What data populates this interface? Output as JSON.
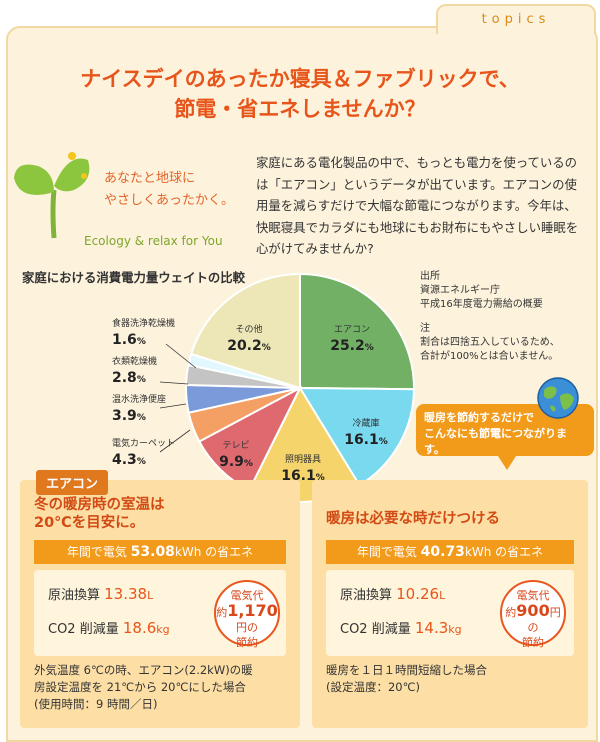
{
  "tab_label": "topics",
  "headline": {
    "line1": "ナイスデイのあったか寝具＆ファブリックで、",
    "line2": "節電・省エネしませんか？"
  },
  "tagline": {
    "line1": "あなたと地球に",
    "line2": "やさしくあったかく。"
  },
  "eco_line": "Ecology & relax for You",
  "intro_text": "家庭にある電化製品の中で、もっとも電力を使っているのは「エアコン」というデータが出ています。エアコンの使用量を減らすだけで大幅な節電につながります。今年は、快眠寝具でカラダにも地球にもお財布にもやさしい睡眠を心がけてみませんか?",
  "chart_data": {
    "type": "pie",
    "title": "家庭における消費電力量ウェイトの比較",
    "unit": "%",
    "slices": [
      {
        "label": "エアコン",
        "value": 25.2,
        "display": "25.2",
        "color": "#72b065"
      },
      {
        "label": "冷蔵庫",
        "value": 16.1,
        "display": "16.1",
        "color": "#79d9ef"
      },
      {
        "label": "照明器具",
        "value": 16.1,
        "display": "16.1",
        "color": "#f5d56b"
      },
      {
        "label": "テレビ",
        "value": 9.9,
        "display": "9.9",
        "color": "#de6a70"
      },
      {
        "label": "電気カーペット",
        "value": 4.3,
        "display": "4.3",
        "color": "#f4a065"
      },
      {
        "label": "温水洗浄便座",
        "value": 3.9,
        "display": "3.9",
        "color": "#7a9ad9"
      },
      {
        "label": "衣類乾燥機",
        "value": 2.8,
        "display": "2.8",
        "color": "#c4c4c4"
      },
      {
        "label": "食器洗浄乾燥機",
        "value": 1.6,
        "display": "1.6",
        "color": "#e2f8ff"
      },
      {
        "label": "その他",
        "value": 20.2,
        "display": "20.2",
        "color": "#ede7b8"
      }
    ]
  },
  "source": {
    "line1": "出所",
    "line2": "資源エネルギー庁",
    "line3": "平成16年度電力需給の概要"
  },
  "note": {
    "line1": "注",
    "line2": "割合は四捨五入しているため、",
    "line3": "合計が100%とは合いません。"
  },
  "bubble": {
    "line1": "暖房を節約するだけで",
    "line2": "こんなにも節電につながります。"
  },
  "category_tag": "エアコン",
  "panel1": {
    "heading1": "冬の暖房時の室温は",
    "heading2": "20℃を目安に。",
    "save_pre": "年間で電気 ",
    "save_val": "53.08",
    "save_post": "kWh の省エネ",
    "oil_label": "原油換算 ",
    "oil_val": "13.38",
    "oil_unit": "L",
    "co2_label": "CO2 削減量 ",
    "co2_val": "18.6",
    "co2_unit": "kg",
    "cost_l1": "電気代",
    "cost_pre": "約",
    "cost_val": "1,170",
    "cost_post": "円の",
    "cost_l3": "節約",
    "foot1": "外気温度 6℃の時、エアコン(2.2kW)の暖",
    "foot2": "房設定温度を 21℃から 20℃にした場合",
    "foot3": "(使用時間：9 時間／日)"
  },
  "panel2": {
    "heading1": "暖房は必要な時だけつける",
    "save_pre": "年間で電気 ",
    "save_val": "40.73",
    "save_post": "kWh の省エネ",
    "oil_label": "原油換算 ",
    "oil_val": "10.26",
    "oil_unit": "L",
    "co2_label": "CO2 削減量 ",
    "co2_val": "14.3",
    "co2_unit": "kg",
    "cost_l1": "電気代",
    "cost_pre": "約",
    "cost_val": "900",
    "cost_post": "円の",
    "cost_l3": "節約",
    "foot1": "暖房を１日１時間短縮した場合",
    "foot2": "(設定温度：20℃)"
  }
}
